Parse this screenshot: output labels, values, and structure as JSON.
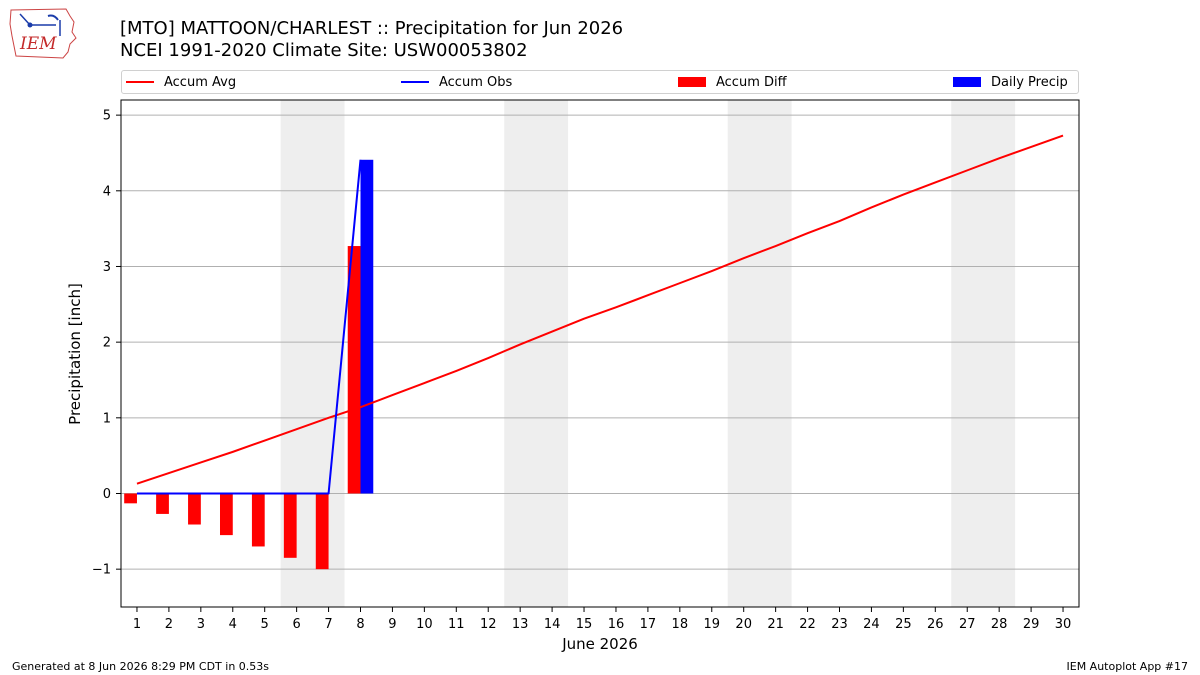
{
  "header": {
    "title_line1": "[MTO] MATTOON/CHARLEST :: Precipitation for Jun 2026",
    "title_line2": "NCEI 1991-2020 Climate Site: USW00053802"
  },
  "logo": {
    "text": "IEM",
    "icon": "iem-iowa-logo-icon"
  },
  "legend": [
    {
      "label": "Accum Avg",
      "kind": "line",
      "color": "#ff0000"
    },
    {
      "label": "Accum Obs",
      "kind": "line",
      "color": "#0000ff"
    },
    {
      "label": "Accum Diff",
      "kind": "patch",
      "color": "#ff0000"
    },
    {
      "label": "Daily Precip",
      "kind": "patch",
      "color": "#0000ff"
    }
  ],
  "footer": {
    "left": "Generated at 8 Jun 2026 8:29 PM CDT in 0.53s",
    "right": "IEM Autoplot App #17"
  },
  "chart_data": {
    "type": "bar",
    "xlabel": "June 2026",
    "ylabel": "Precipitation [inch]",
    "xlim": [
      0.5,
      30.5
    ],
    "ylim": [
      -1.5,
      5.2
    ],
    "x_ticks": [
      1,
      2,
      3,
      4,
      5,
      6,
      7,
      8,
      9,
      10,
      11,
      12,
      13,
      14,
      15,
      16,
      17,
      18,
      19,
      20,
      21,
      22,
      23,
      24,
      25,
      26,
      27,
      28,
      29,
      30
    ],
    "y_ticks": [
      -1,
      0,
      1,
      2,
      3,
      4,
      5
    ],
    "y_tick_labels": [
      "−1",
      "0",
      "1",
      "2",
      "3",
      "4",
      "5"
    ],
    "grid": "y",
    "weekend_shading": [
      [
        5.5,
        7.5
      ],
      [
        12.5,
        14.5
      ],
      [
        19.5,
        21.5
      ],
      [
        26.5,
        28.5
      ]
    ],
    "accum_avg": {
      "name": "Accum Avg",
      "x": [
        1,
        2,
        3,
        4,
        5,
        6,
        7,
        8,
        9,
        10,
        11,
        12,
        13,
        14,
        15,
        16,
        17,
        18,
        19,
        20,
        21,
        22,
        23,
        24,
        25,
        26,
        27,
        28,
        29,
        30
      ],
      "y": [
        0.13,
        0.27,
        0.41,
        0.55,
        0.7,
        0.85,
        1.0,
        1.14,
        1.3,
        1.46,
        1.62,
        1.79,
        1.97,
        2.14,
        2.31,
        2.46,
        2.62,
        2.78,
        2.94,
        3.11,
        3.27,
        3.44,
        3.6,
        3.78,
        3.95,
        4.11,
        4.27,
        4.43,
        4.58,
        4.73
      ]
    },
    "accum_obs": {
      "name": "Accum Obs",
      "x": [
        1,
        2,
        3,
        4,
        5,
        6,
        7,
        8
      ],
      "y": [
        0,
        0,
        0,
        0,
        0,
        0,
        0,
        4.41
      ]
    },
    "accum_diff": {
      "name": "Accum Diff",
      "x": [
        1,
        2,
        3,
        4,
        5,
        6,
        7,
        8
      ],
      "y": [
        -0.13,
        -0.27,
        -0.41,
        -0.55,
        -0.7,
        -0.85,
        -1.0,
        3.27
      ]
    },
    "daily_precip": {
      "name": "Daily Precip",
      "x": [
        8
      ],
      "y": [
        4.41
      ]
    }
  }
}
